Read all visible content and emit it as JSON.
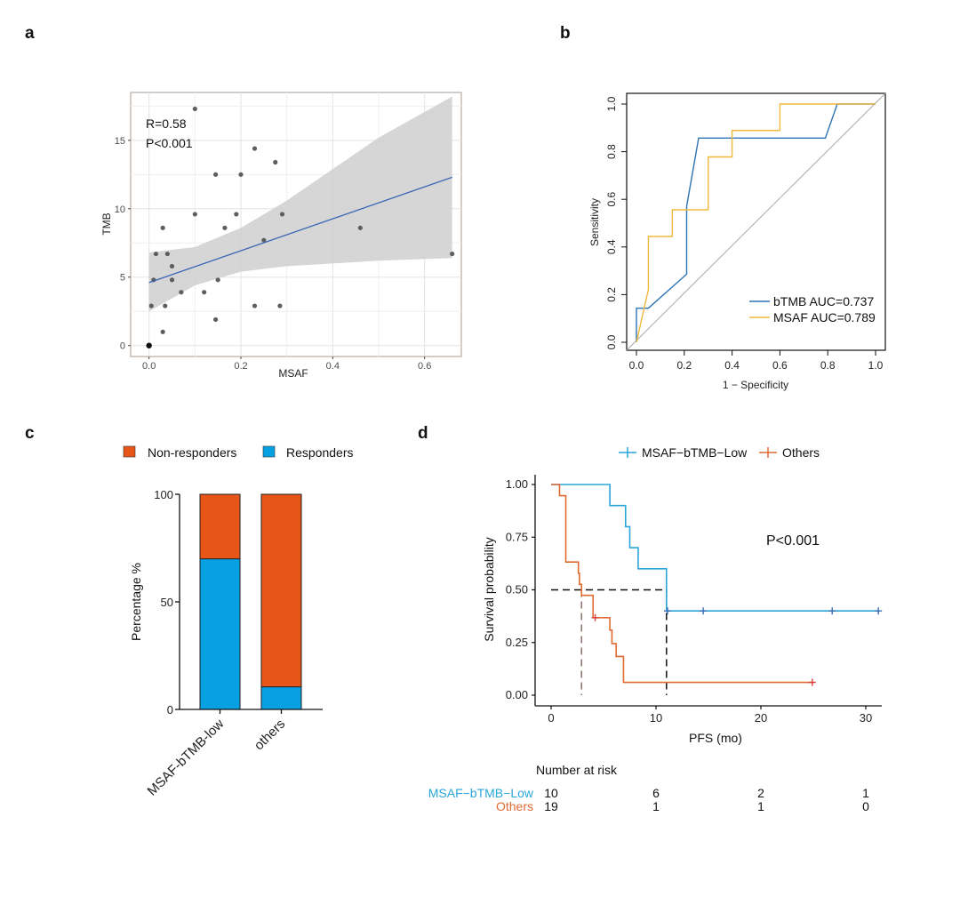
{
  "panels": {
    "a": "a",
    "b": "b",
    "c": "c",
    "d": "d"
  },
  "chart_data": [
    {
      "panel": "a",
      "type": "scatter",
      "title": "",
      "xlabel": "MSAF",
      "ylabel": "TMB",
      "xlim": [
        -0.04,
        0.68
      ],
      "ylim": [
        -0.8,
        18.5
      ],
      "xticks": [
        0.0,
        0.2,
        0.4,
        0.6
      ],
      "xtick_labels": [
        "0.0",
        "0.2",
        "0.4",
        "0.6"
      ],
      "yticks": [
        0,
        5,
        10,
        15
      ],
      "ytick_labels": [
        "0",
        "5",
        "10",
        "15"
      ],
      "grid": true,
      "annotations": [
        "R=0.58",
        "P<0.001"
      ],
      "points": [
        {
          "x": 0.0,
          "y": 0.0
        },
        {
          "x": 0.005,
          "y": 2.9
        },
        {
          "x": 0.01,
          "y": 4.8
        },
        {
          "x": 0.015,
          "y": 6.7
        },
        {
          "x": 0.03,
          "y": 8.6
        },
        {
          "x": 0.03,
          "y": 1.0
        },
        {
          "x": 0.035,
          "y": 2.9
        },
        {
          "x": 0.04,
          "y": 6.7
        },
        {
          "x": 0.05,
          "y": 5.8
        },
        {
          "x": 0.05,
          "y": 4.8
        },
        {
          "x": 0.07,
          "y": 3.9
        },
        {
          "x": 0.1,
          "y": 9.6
        },
        {
          "x": 0.1,
          "y": 17.3
        },
        {
          "x": 0.12,
          "y": 3.9
        },
        {
          "x": 0.145,
          "y": 1.9
        },
        {
          "x": 0.145,
          "y": 12.5
        },
        {
          "x": 0.15,
          "y": 4.8
        },
        {
          "x": 0.165,
          "y": 8.6
        },
        {
          "x": 0.19,
          "y": 9.6
        },
        {
          "x": 0.2,
          "y": 12.5
        },
        {
          "x": 0.23,
          "y": 2.9
        },
        {
          "x": 0.23,
          "y": 14.4
        },
        {
          "x": 0.25,
          "y": 7.7
        },
        {
          "x": 0.275,
          "y": 13.4
        },
        {
          "x": 0.285,
          "y": 2.9
        },
        {
          "x": 0.29,
          "y": 9.6
        },
        {
          "x": 0.46,
          "y": 8.6
        },
        {
          "x": 0.66,
          "y": 6.7
        }
      ],
      "fit_line": {
        "x": [
          0.0,
          0.66
        ],
        "y": [
          4.6,
          12.3
        ]
      },
      "ci_band": {
        "x": [
          0.0,
          0.1,
          0.2,
          0.3,
          0.4,
          0.5,
          0.66
        ],
        "lower": [
          2.5,
          4.4,
          5.4,
          5.8,
          6.0,
          6.2,
          6.4
        ],
        "upper": [
          6.8,
          7.2,
          8.6,
          10.6,
          12.9,
          15.2,
          18.2
        ]
      },
      "colors": {
        "point": "#5e5e5e",
        "line": "#3a66b5",
        "band": "#d3d3d3"
      }
    },
    {
      "panel": "b",
      "type": "line",
      "title": "",
      "xlabel": "1 − Specificity",
      "ylabel": "Sensitivity",
      "xlim": [
        0,
        1
      ],
      "ylim": [
        0,
        1
      ],
      "xtick_labels": [
        "0.0",
        "0.2",
        "0.4",
        "0.6",
        "0.8",
        "1.0"
      ],
      "ytick_labels": [
        "0.0",
        "0.2",
        "0.4",
        "0.6",
        "0.8",
        "1.0"
      ],
      "legend_position": "bottom-right",
      "series": [
        {
          "name": "bTMB AUC=0.737",
          "color": "#2f74b5",
          "x": [
            0.0,
            0.0,
            0.05,
            0.21,
            0.21,
            0.26,
            0.79,
            0.84,
            1.0
          ],
          "y": [
            0.0,
            0.143,
            0.143,
            0.286,
            0.571,
            0.857,
            0.857,
            1.0,
            1.0
          ]
        },
        {
          "name": "MSAF AUC=0.789",
          "color": "#f0b83c",
          "x": [
            0.0,
            0.05,
            0.05,
            0.15,
            0.15,
            0.3,
            0.3,
            0.4,
            0.4,
            0.6,
            0.6,
            1.0
          ],
          "y": [
            0.0,
            0.222,
            0.444,
            0.444,
            0.556,
            0.556,
            0.778,
            0.778,
            0.889,
            0.889,
            1.0,
            1.0
          ]
        }
      ],
      "reference_line": {
        "x": [
          0,
          1
        ],
        "y": [
          0,
          1
        ],
        "color": "#a9a9a9"
      }
    },
    {
      "panel": "c",
      "type": "bar",
      "stacked": true,
      "title": "",
      "xlabel": "",
      "ylabel": "Percentage %",
      "ylim": [
        0,
        100
      ],
      "ytick_labels": [
        "0",
        "50",
        "100"
      ],
      "categories": [
        "MSAF-bTMB-low",
        "others"
      ],
      "legend_position": "top",
      "series": [
        {
          "name": "Responders",
          "color": "#06a0e3",
          "values": [
            70,
            10.5
          ]
        },
        {
          "name": "Non-responders",
          "color": "#e85518",
          "values": [
            30,
            89.5
          ]
        }
      ],
      "legend_order": [
        "Non-responders",
        "Responders"
      ]
    },
    {
      "panel": "d",
      "type": "line",
      "subtype": "kaplan-meier",
      "title": "",
      "xlabel": "PFS (mo)",
      "ylabel": "Survival probability",
      "xlim": [
        0,
        31
      ],
      "ylim": [
        0,
        1
      ],
      "xtick_labels": [
        "0",
        "10",
        "20",
        "30"
      ],
      "ytick_labels": [
        "0.00",
        "0.25",
        "0.50",
        "0.75",
        "1.00"
      ],
      "annotation": "P<0.001",
      "legend_position": "top",
      "series": [
        {
          "name": "MSAF−bTMB−Low",
          "color": "#29a6d9",
          "censor_color": "#3a6fb5",
          "steps_x": [
            0,
            5.6,
            7.1,
            7.5,
            8.3,
            11.0,
            31.3
          ],
          "steps_y": [
            1.0,
            0.9,
            0.8,
            0.7,
            0.6,
            0.4,
            0.4
          ],
          "censored": [
            {
              "x": 11.1,
              "y": 0.4
            },
            {
              "x": 14.5,
              "y": 0.4
            },
            {
              "x": 26.8,
              "y": 0.4
            },
            {
              "x": 31.2,
              "y": 0.4
            }
          ],
          "median": 11.0
        },
        {
          "name": "Others",
          "color": "#e06a32",
          "censor_color": "#d9403a",
          "steps_x": [
            0,
            0.8,
            1.4,
            2.6,
            2.7,
            2.9,
            4.0,
            5.6,
            5.8,
            6.2,
            6.9,
            25.0
          ],
          "steps_y": [
            1.0,
            0.947,
            0.632,
            0.579,
            0.526,
            0.474,
            0.368,
            0.309,
            0.245,
            0.184,
            0.061,
            0.061
          ],
          "censored": [
            {
              "x": 4.2,
              "y": 0.368
            },
            {
              "x": 24.9,
              "y": 0.061
            }
          ],
          "median": 2.9
        }
      ],
      "risk_table": {
        "title": "Number at risk",
        "times": [
          0,
          10,
          20,
          30
        ],
        "rows": [
          {
            "label": "MSAF−bTMB−Low",
            "color": "#29a6d9",
            "values": [
              "10",
              "6",
              "2",
              "1"
            ]
          },
          {
            "label": "Others",
            "color": "#e06a32",
            "values": [
              "19",
              "1",
              "1",
              "0"
            ]
          }
        ]
      }
    }
  ]
}
